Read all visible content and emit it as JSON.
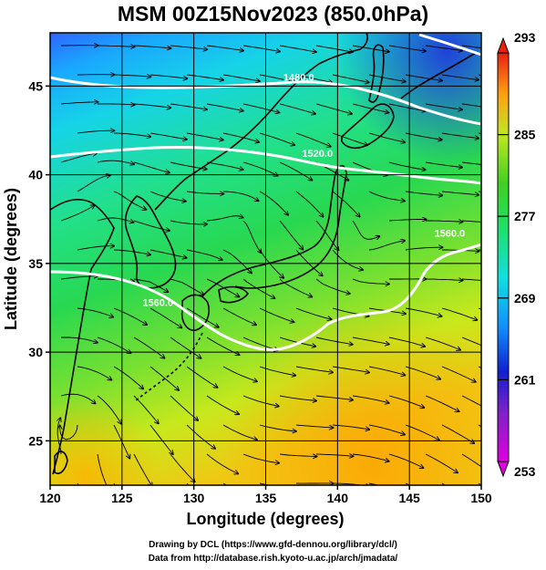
{
  "title": "MSM 00Z15Nov2023 (850.0hPa)",
  "map": {
    "xlabel": "Longitude (degrees)",
    "ylabel": "Latitude  (degrees)",
    "xlim": [
      120,
      150
    ],
    "ylim": [
      22.5,
      48
    ],
    "xticks": [
      "120",
      "125",
      "130",
      "135",
      "140",
      "145",
      "150"
    ],
    "yticks": [
      "25",
      "30",
      "35",
      "40",
      "45"
    ],
    "contour_labels": [
      {
        "text": "1480.0",
        "lon": 137.3,
        "lat": 45.3
      },
      {
        "text": "1520.0",
        "lon": 138.6,
        "lat": 41.0
      },
      {
        "text": "1560.0",
        "lon": 127.5,
        "lat": 32.6
      },
      {
        "text": "1560.0",
        "lon": 147.8,
        "lat": 36.5
      }
    ]
  },
  "colorbar": {
    "ticks": [
      "293",
      "285",
      "277",
      "269",
      "261",
      "253"
    ],
    "range": [
      253,
      293
    ]
  },
  "credits": {
    "line1": "Drawing by DCL (https://www.gfd-dennou.org/library/dcl/)",
    "line2": "Data from http://database.rish.kyoto-u.ac.jp/arch/jmadata/"
  }
}
